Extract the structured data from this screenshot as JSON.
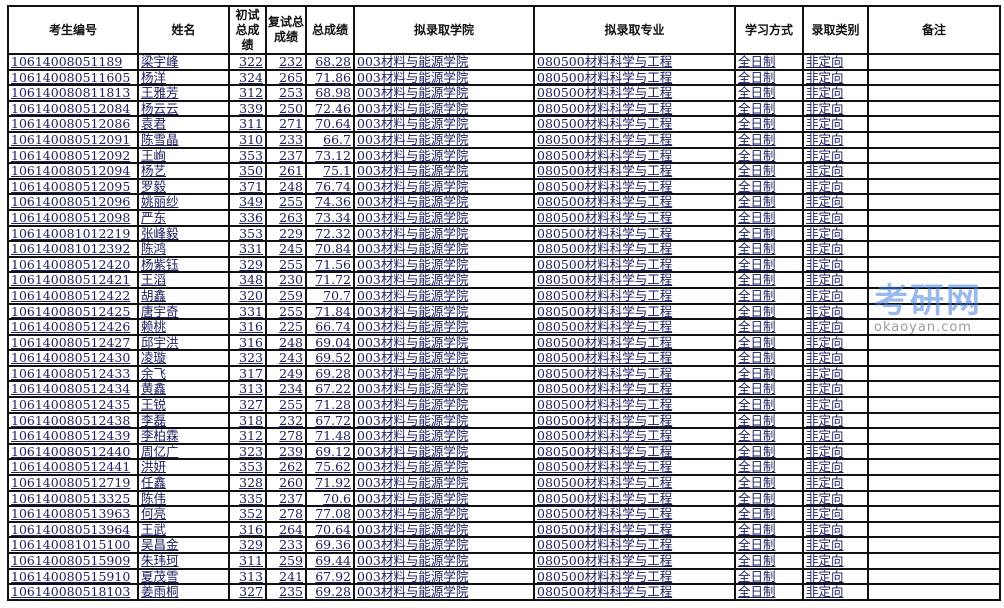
{
  "headers": [
    "考生编号",
    "姓名",
    "初试总成绩",
    "复试总成绩",
    "总成绩",
    "拟录取学院",
    "拟录取专业",
    "学习方式",
    "录取类别",
    "备注"
  ],
  "watermark": {
    "text": "考研网",
    "url": "okaoyan.com"
  },
  "rows": [
    [
      "10614008051189",
      "梁宇峰",
      "322",
      "232",
      "68.28"
    ],
    [
      "106140080511605",
      "杨洋",
      "324",
      "265",
      "71.86"
    ],
    [
      "106140080811813",
      "王雅芳",
      "312",
      "253",
      "68.98"
    ],
    [
      "106140080512084",
      "杨云云",
      "339",
      "250",
      "72.46"
    ],
    [
      "106140080512086",
      "袁君",
      "311",
      "271",
      "70.64"
    ],
    [
      "106140080512091",
      "陈雪晶",
      "310",
      "233",
      "66.7"
    ],
    [
      "106140080512092",
      "王峋",
      "353",
      "237",
      "73.12"
    ],
    [
      "106140080512094",
      "杨艺",
      "350",
      "261",
      "75.1"
    ],
    [
      "106140080512095",
      "罗毅",
      "371",
      "248",
      "76.74"
    ],
    [
      "106140080512096",
      "姚丽纱",
      "349",
      "255",
      "74.36"
    ],
    [
      "106140080512098",
      "严东",
      "336",
      "263",
      "73.34"
    ],
    [
      "106140081012219",
      "张峰毅",
      "353",
      "229",
      "72.32"
    ],
    [
      "106140081012392",
      "陈鸿",
      "331",
      "245",
      "70.84"
    ],
    [
      "106140080512420",
      "杨紫钰",
      "329",
      "255",
      "71.56"
    ],
    [
      "106140080512421",
      "王滔",
      "348",
      "230",
      "71.72"
    ],
    [
      "106140080512422",
      "胡鑫",
      "320",
      "259",
      "70.7"
    ],
    [
      "106140080512425",
      "唐宇奇",
      "331",
      "255",
      "71.84"
    ],
    [
      "106140080512426",
      "赖桃",
      "316",
      "225",
      "66.74"
    ],
    [
      "106140080512427",
      "邱宇洪",
      "316",
      "248",
      "69.04"
    ],
    [
      "106140080512430",
      "凌璇",
      "323",
      "243",
      "69.52"
    ],
    [
      "106140080512433",
      "余飞",
      "317",
      "249",
      "69.28"
    ],
    [
      "106140080512434",
      "黄鑫",
      "313",
      "234",
      "67.22"
    ],
    [
      "106140080512435",
      "王锐",
      "327",
      "255",
      "71.28"
    ],
    [
      "106140080512438",
      "李磊",
      "318",
      "232",
      "67.72"
    ],
    [
      "106140080512439",
      "李柏霖",
      "312",
      "278",
      "71.48"
    ],
    [
      "106140080512440",
      "周亿广",
      "323",
      "239",
      "69.12"
    ],
    [
      "106140080512441",
      "洪妍",
      "353",
      "262",
      "75.62"
    ],
    [
      "106140080512719",
      "任鑫",
      "328",
      "260",
      "71.92"
    ],
    [
      "106140080513325",
      "陈伟",
      "335",
      "237",
      "70.6"
    ],
    [
      "106140080513963",
      "何亮",
      "352",
      "278",
      "77.08"
    ],
    [
      "106140080513964",
      "王武",
      "316",
      "264",
      "70.64"
    ],
    [
      "106140081015100",
      "吴昌金",
      "329",
      "233",
      "69.36"
    ],
    [
      "106140080515909",
      "朱玮珂",
      "311",
      "259",
      "69.44"
    ],
    [
      "106140080515910",
      "夏茂雪",
      "313",
      "241",
      "67.92"
    ],
    [
      "106140080518103",
      "姜雨桐",
      "327",
      "235",
      "69.28"
    ]
  ],
  "common": {
    "college": "003材料与能源学院",
    "major": "080500材料科学与工程",
    "mode": "全日制",
    "type": "非定向",
    "note": ""
  }
}
